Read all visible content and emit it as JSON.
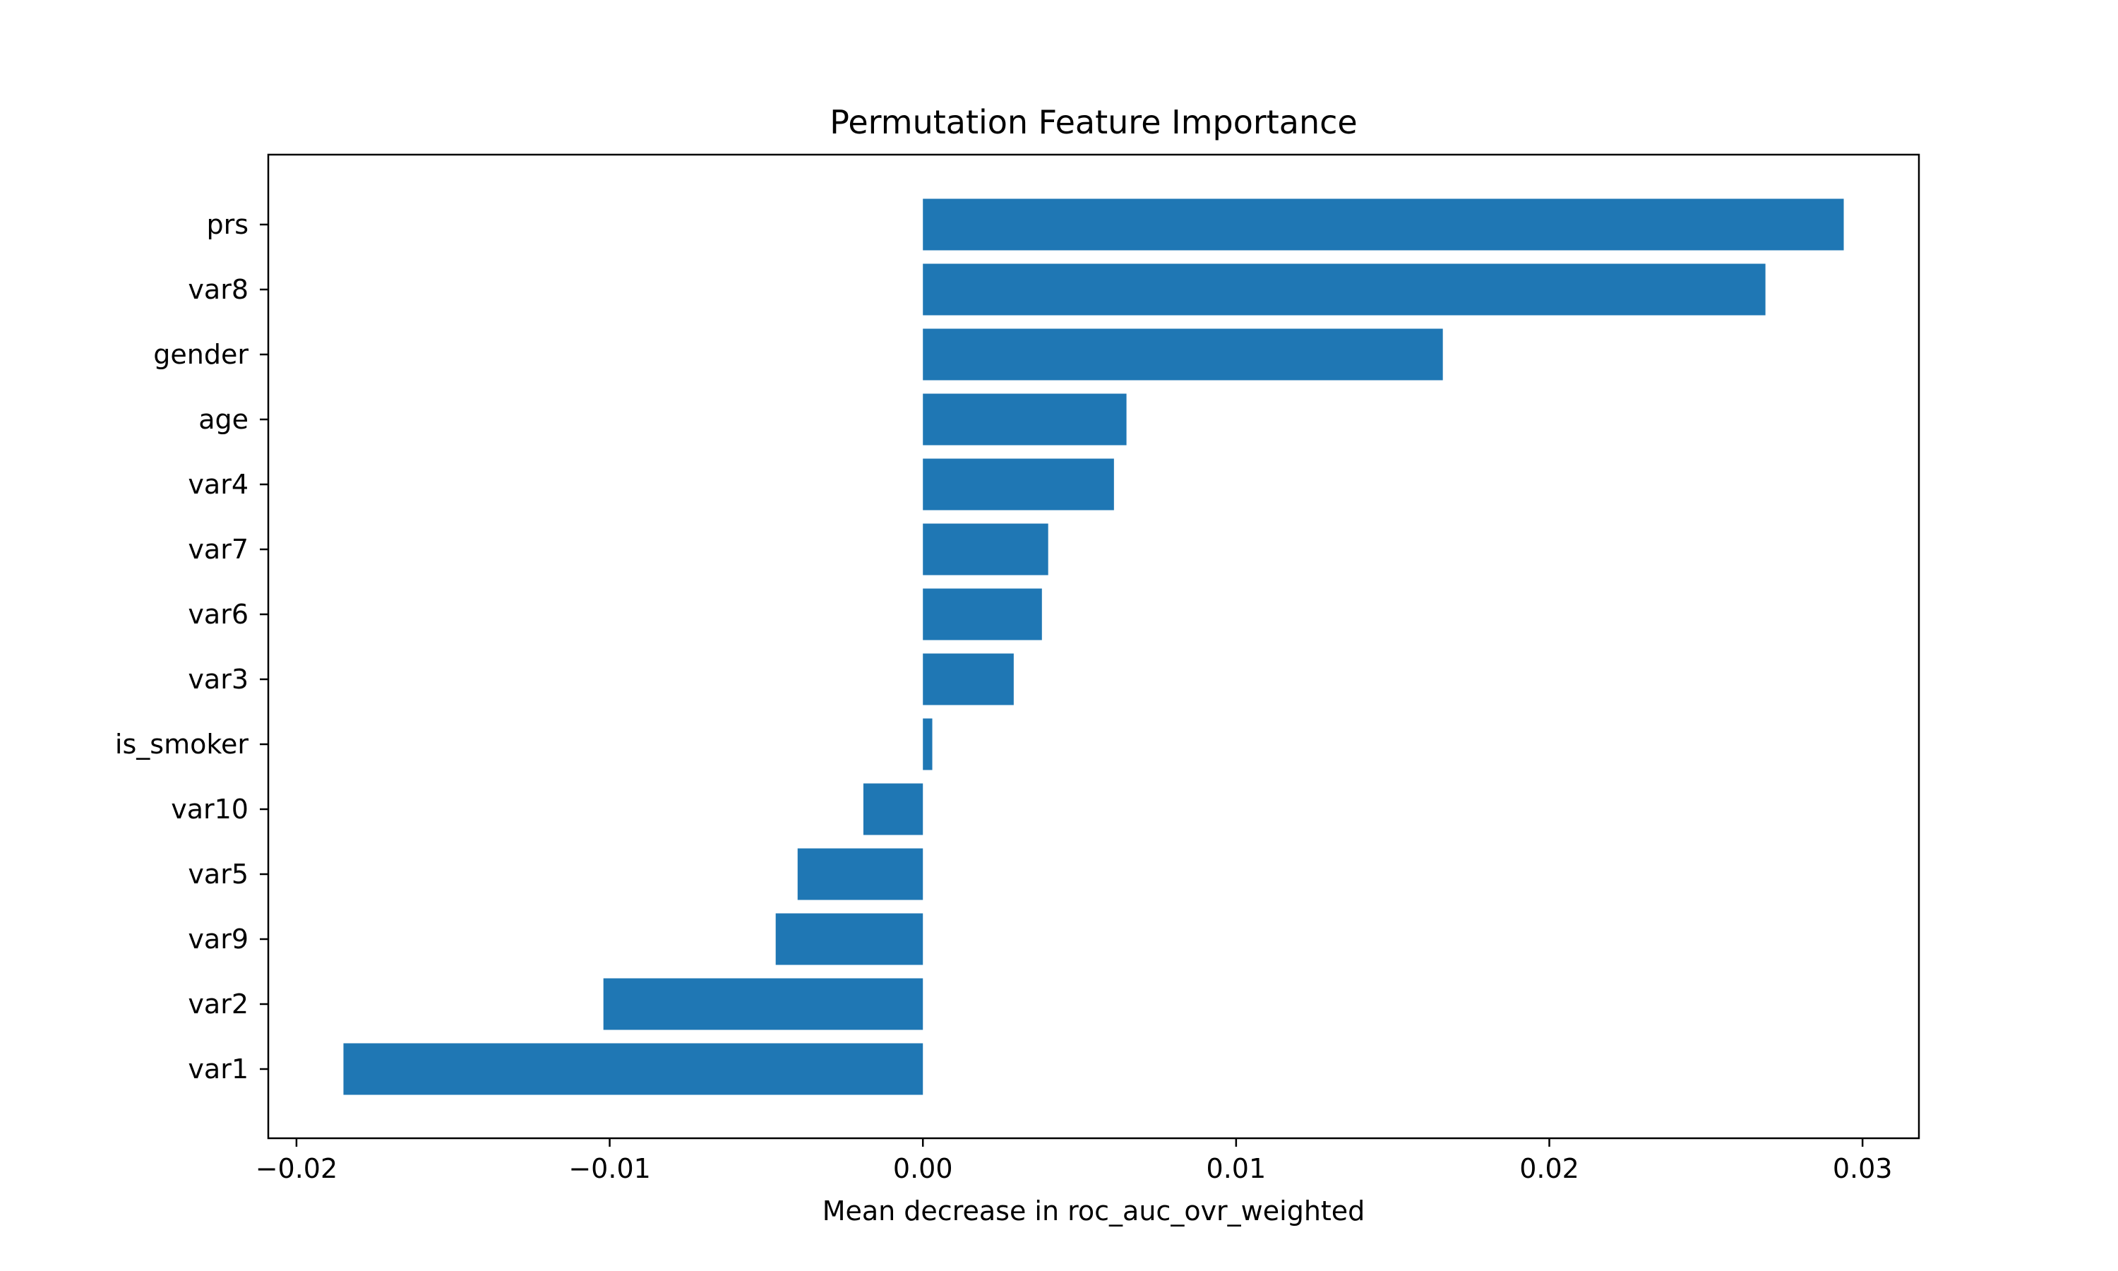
{
  "chart_data": {
    "type": "bar",
    "orientation": "horizontal",
    "title": "Permutation Feature Importance",
    "xlabel": "Mean decrease in roc_auc_ovr_weighted",
    "ylabel": "",
    "categories": [
      "prs",
      "var8",
      "gender",
      "age",
      "var4",
      "var7",
      "var6",
      "var3",
      "is_smoker",
      "var10",
      "var5",
      "var9",
      "var2",
      "var1"
    ],
    "values": [
      0.0294,
      0.0269,
      0.0166,
      0.0065,
      0.0061,
      0.004,
      0.0038,
      0.0029,
      0.0003,
      -0.0019,
      -0.004,
      -0.0047,
      -0.0102,
      -0.0185
    ],
    "xlim": [
      -0.0209,
      0.0318
    ],
    "xticks": [
      -0.02,
      -0.01,
      0.0,
      0.01,
      0.02,
      0.03
    ],
    "xtick_labels": [
      "−0.02",
      "−0.01",
      "0.00",
      "0.01",
      "0.02",
      "0.03"
    ],
    "grid": false,
    "legend": "none",
    "bar_color": "#1f77b4"
  }
}
